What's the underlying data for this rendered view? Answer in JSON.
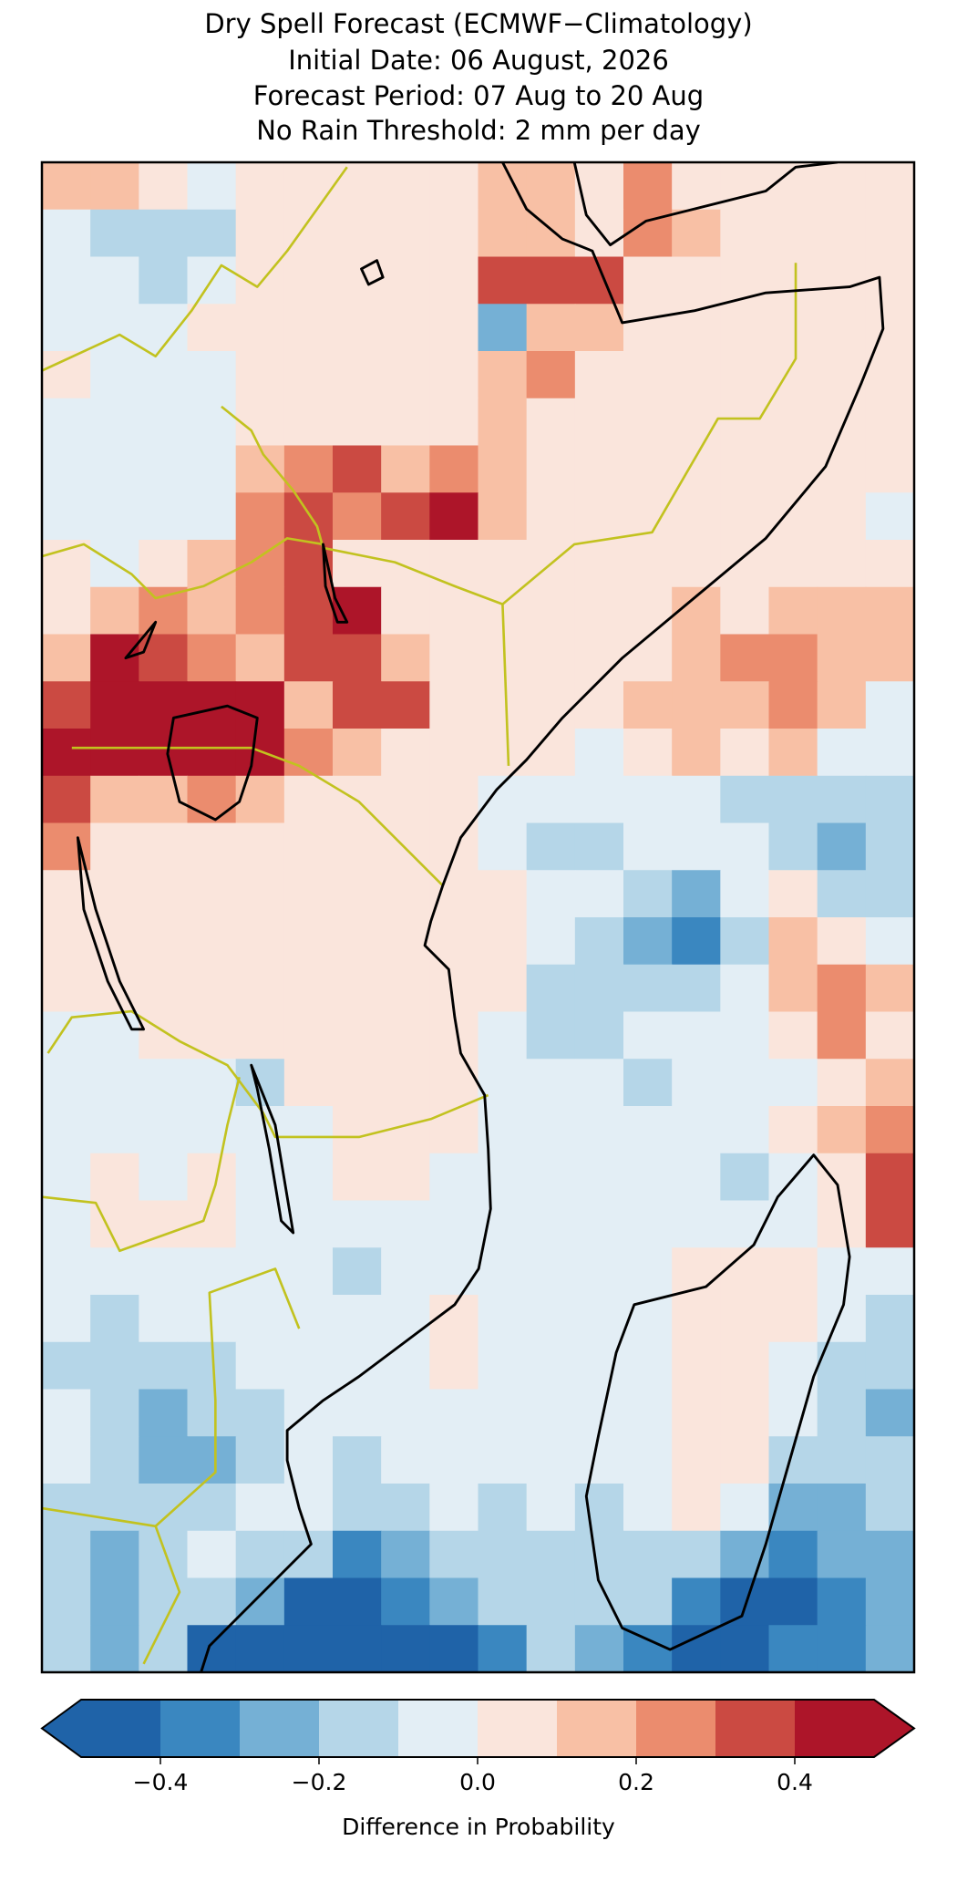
{
  "chart_data": {
    "type": "heatmap",
    "title": [
      "Dry Spell Forecast (ECMWF−Climatology)",
      "Initial Date: 06 August, 2026",
      "Forecast Period: 07 Aug to 20 Aug",
      "No Rain Threshold: 2 mm per day"
    ],
    "values": [
      [
        0.15,
        0.15,
        0.05,
        -0.05,
        0.05,
        0.05,
        0.05,
        0.05,
        0.05,
        0.15,
        0.15,
        0.05,
        0.25,
        0.05,
        0.05,
        0.05,
        0.05,
        0.05
      ],
      [
        -0.05,
        -0.15,
        -0.15,
        -0.15,
        0.05,
        0.05,
        0.05,
        0.05,
        0.05,
        0.15,
        0.15,
        0.05,
        0.25,
        0.15,
        0.05,
        0.05,
        0.05,
        0.05
      ],
      [
        -0.05,
        -0.05,
        -0.15,
        -0.05,
        0.05,
        0.05,
        0.05,
        0.05,
        0.05,
        0.35,
        0.35,
        0.35,
        0.05,
        0.05,
        0.05,
        0.05,
        0.05,
        0.05
      ],
      [
        -0.05,
        -0.05,
        -0.05,
        0.05,
        0.05,
        0.05,
        0.05,
        0.05,
        0.05,
        -0.25,
        0.15,
        0.15,
        0.05,
        0.05,
        0.05,
        0.05,
        0.05,
        0.05
      ],
      [
        0.05,
        -0.05,
        -0.05,
        -0.05,
        0.05,
        0.05,
        0.05,
        0.05,
        0.05,
        0.15,
        0.25,
        0.05,
        0.05,
        0.05,
        0.05,
        0.05,
        0.05,
        0.05
      ],
      [
        -0.05,
        -0.05,
        -0.05,
        -0.05,
        0.05,
        0.05,
        0.05,
        0.05,
        0.05,
        0.15,
        0.05,
        0.05,
        0.05,
        0.05,
        0.05,
        0.05,
        0.05,
        0.05
      ],
      [
        -0.05,
        -0.05,
        -0.05,
        -0.05,
        0.15,
        0.25,
        0.35,
        0.15,
        0.25,
        0.15,
        0.05,
        0.05,
        0.05,
        0.05,
        0.05,
        0.05,
        0.05,
        0.05
      ],
      [
        -0.05,
        -0.05,
        -0.05,
        -0.05,
        0.25,
        0.35,
        0.25,
        0.35,
        0.45,
        0.15,
        0.05,
        0.05,
        0.05,
        0.05,
        0.05,
        0.05,
        0.05,
        -0.05
      ],
      [
        0.05,
        -0.05,
        0.05,
        0.15,
        0.25,
        0.35,
        0.05,
        0.05,
        0.05,
        0.05,
        0.05,
        0.05,
        0.05,
        0.05,
        0.05,
        0.05,
        0.05,
        0.05
      ],
      [
        0.05,
        0.15,
        0.25,
        0.15,
        0.25,
        0.35,
        0.45,
        0.05,
        0.05,
        0.05,
        0.05,
        0.05,
        0.05,
        0.15,
        0.05,
        0.15,
        0.15,
        0.15
      ],
      [
        0.15,
        0.45,
        0.35,
        0.25,
        0.15,
        0.35,
        0.35,
        0.15,
        0.05,
        0.05,
        0.05,
        0.05,
        0.05,
        0.15,
        0.25,
        0.25,
        0.15,
        0.15
      ],
      [
        0.35,
        0.45,
        0.45,
        0.45,
        0.45,
        0.15,
        0.35,
        0.35,
        0.05,
        0.05,
        0.05,
        0.05,
        0.15,
        0.15,
        0.15,
        0.25,
        0.15,
        -0.05
      ],
      [
        0.45,
        0.45,
        0.45,
        0.45,
        0.45,
        0.25,
        0.15,
        0.05,
        0.05,
        0.05,
        0.05,
        -0.05,
        0.05,
        0.15,
        0.05,
        0.15,
        -0.05,
        -0.05
      ],
      [
        0.35,
        0.15,
        0.15,
        0.25,
        0.15,
        0.05,
        0.05,
        0.05,
        0.05,
        -0.05,
        -0.05,
        -0.05,
        -0.05,
        -0.05,
        -0.15,
        -0.15,
        -0.15,
        -0.15
      ],
      [
        0.25,
        0.05,
        0.05,
        0.05,
        0.05,
        0.05,
        0.05,
        0.05,
        0.05,
        -0.05,
        -0.15,
        -0.15,
        -0.05,
        -0.05,
        -0.05,
        -0.15,
        -0.25,
        -0.15
      ],
      [
        0.05,
        0.05,
        0.05,
        0.05,
        0.05,
        0.05,
        0.05,
        0.05,
        0.05,
        0.05,
        -0.05,
        -0.05,
        -0.15,
        -0.25,
        -0.05,
        0.05,
        -0.15,
        -0.15
      ],
      [
        0.05,
        0.05,
        0.05,
        0.05,
        0.05,
        0.05,
        0.05,
        0.05,
        0.05,
        0.05,
        -0.05,
        -0.15,
        -0.25,
        -0.35,
        -0.15,
        0.15,
        0.05,
        -0.05
      ],
      [
        0.05,
        0.05,
        0.05,
        0.05,
        0.05,
        0.05,
        0.05,
        0.05,
        0.05,
        0.05,
        -0.15,
        -0.15,
        -0.15,
        -0.15,
        -0.05,
        0.15,
        0.25,
        0.15
      ],
      [
        -0.05,
        -0.05,
        0.05,
        0.05,
        0.05,
        0.05,
        0.05,
        0.05,
        0.05,
        -0.05,
        -0.15,
        -0.15,
        -0.05,
        -0.05,
        -0.05,
        0.05,
        0.25,
        0.05
      ],
      [
        -0.05,
        -0.05,
        -0.05,
        -0.05,
        -0.15,
        0.05,
        0.05,
        0.05,
        0.05,
        -0.05,
        -0.05,
        -0.05,
        -0.15,
        -0.05,
        -0.05,
        -0.05,
        0.05,
        0.15
      ],
      [
        -0.05,
        -0.05,
        -0.05,
        -0.05,
        -0.05,
        -0.05,
        0.05,
        0.05,
        0.05,
        -0.05,
        -0.05,
        -0.05,
        -0.05,
        -0.05,
        -0.05,
        0.05,
        0.15,
        0.25
      ],
      [
        -0.05,
        0.05,
        -0.05,
        0.05,
        -0.05,
        -0.05,
        0.05,
        0.05,
        -0.05,
        -0.05,
        -0.05,
        -0.05,
        -0.05,
        -0.05,
        -0.15,
        -0.05,
        0.05,
        0.35
      ],
      [
        -0.05,
        0.05,
        0.05,
        0.05,
        -0.05,
        -0.05,
        -0.05,
        -0.05,
        -0.05,
        -0.05,
        -0.05,
        -0.05,
        -0.05,
        -0.05,
        -0.05,
        -0.05,
        0.05,
        0.35
      ],
      [
        -0.05,
        -0.05,
        -0.05,
        -0.05,
        -0.05,
        -0.05,
        -0.15,
        -0.05,
        -0.05,
        -0.05,
        -0.05,
        -0.05,
        -0.05,
        0.05,
        0.05,
        0.05,
        -0.05,
        -0.05
      ],
      [
        -0.05,
        -0.15,
        -0.05,
        -0.05,
        -0.05,
        -0.05,
        -0.05,
        -0.05,
        0.05,
        -0.05,
        -0.05,
        -0.05,
        -0.05,
        0.05,
        0.05,
        0.05,
        -0.05,
        -0.15
      ],
      [
        -0.15,
        -0.15,
        -0.15,
        -0.15,
        -0.05,
        -0.05,
        -0.05,
        -0.05,
        0.05,
        -0.05,
        -0.05,
        -0.05,
        -0.05,
        0.05,
        0.05,
        -0.05,
        -0.15,
        -0.15
      ],
      [
        -0.05,
        -0.15,
        -0.25,
        -0.15,
        -0.15,
        -0.05,
        -0.05,
        -0.05,
        -0.05,
        -0.05,
        -0.05,
        -0.05,
        -0.05,
        0.05,
        0.05,
        -0.05,
        -0.15,
        -0.25
      ],
      [
        -0.05,
        -0.15,
        -0.25,
        -0.25,
        -0.15,
        -0.05,
        -0.15,
        -0.05,
        -0.05,
        -0.05,
        -0.05,
        -0.05,
        -0.05,
        0.05,
        0.05,
        -0.15,
        -0.15,
        -0.15
      ],
      [
        -0.15,
        -0.15,
        -0.15,
        -0.15,
        -0.05,
        -0.05,
        -0.15,
        -0.15,
        -0.05,
        -0.15,
        -0.05,
        -0.15,
        -0.05,
        0.05,
        -0.05,
        -0.25,
        -0.25,
        -0.15
      ],
      [
        -0.15,
        -0.25,
        -0.15,
        -0.05,
        -0.15,
        -0.15,
        -0.35,
        -0.25,
        -0.15,
        -0.15,
        -0.15,
        -0.15,
        -0.15,
        -0.15,
        -0.25,
        -0.35,
        -0.25,
        -0.25
      ],
      [
        -0.15,
        -0.25,
        -0.15,
        -0.15,
        -0.25,
        -0.45,
        -0.45,
        -0.35,
        -0.25,
        -0.15,
        -0.15,
        -0.15,
        -0.15,
        -0.35,
        -0.45,
        -0.45,
        -0.35,
        -0.25
      ],
      [
        -0.15,
        -0.25,
        -0.15,
        -0.45,
        -0.45,
        -0.45,
        -0.45,
        -0.45,
        -0.45,
        -0.35,
        -0.15,
        -0.25,
        -0.35,
        -0.45,
        -0.45,
        -0.35,
        -0.35,
        -0.25
      ]
    ],
    "colorbar": {
      "levels": [
        -0.5,
        -0.4,
        -0.3,
        -0.2,
        -0.1,
        0,
        0.1,
        0.2,
        0.3,
        0.4,
        0.5
      ],
      "colors": [
        "#1f63a8",
        "#3a87c0",
        "#75b0d5",
        "#b5d6e8",
        "#e3eef5",
        "#fae5dc",
        "#f8c0a5",
        "#eb8c6e",
        "#cb4a42",
        "#ad1529"
      ],
      "extend": "both",
      "ticks": [
        {
          "value": -0.4,
          "label": "−0.4"
        },
        {
          "value": -0.2,
          "label": "−0.2"
        },
        {
          "value": 0,
          "label": "0.0"
        },
        0.2,
        0.4
      ],
      "label": "Difference in Probability"
    }
  }
}
